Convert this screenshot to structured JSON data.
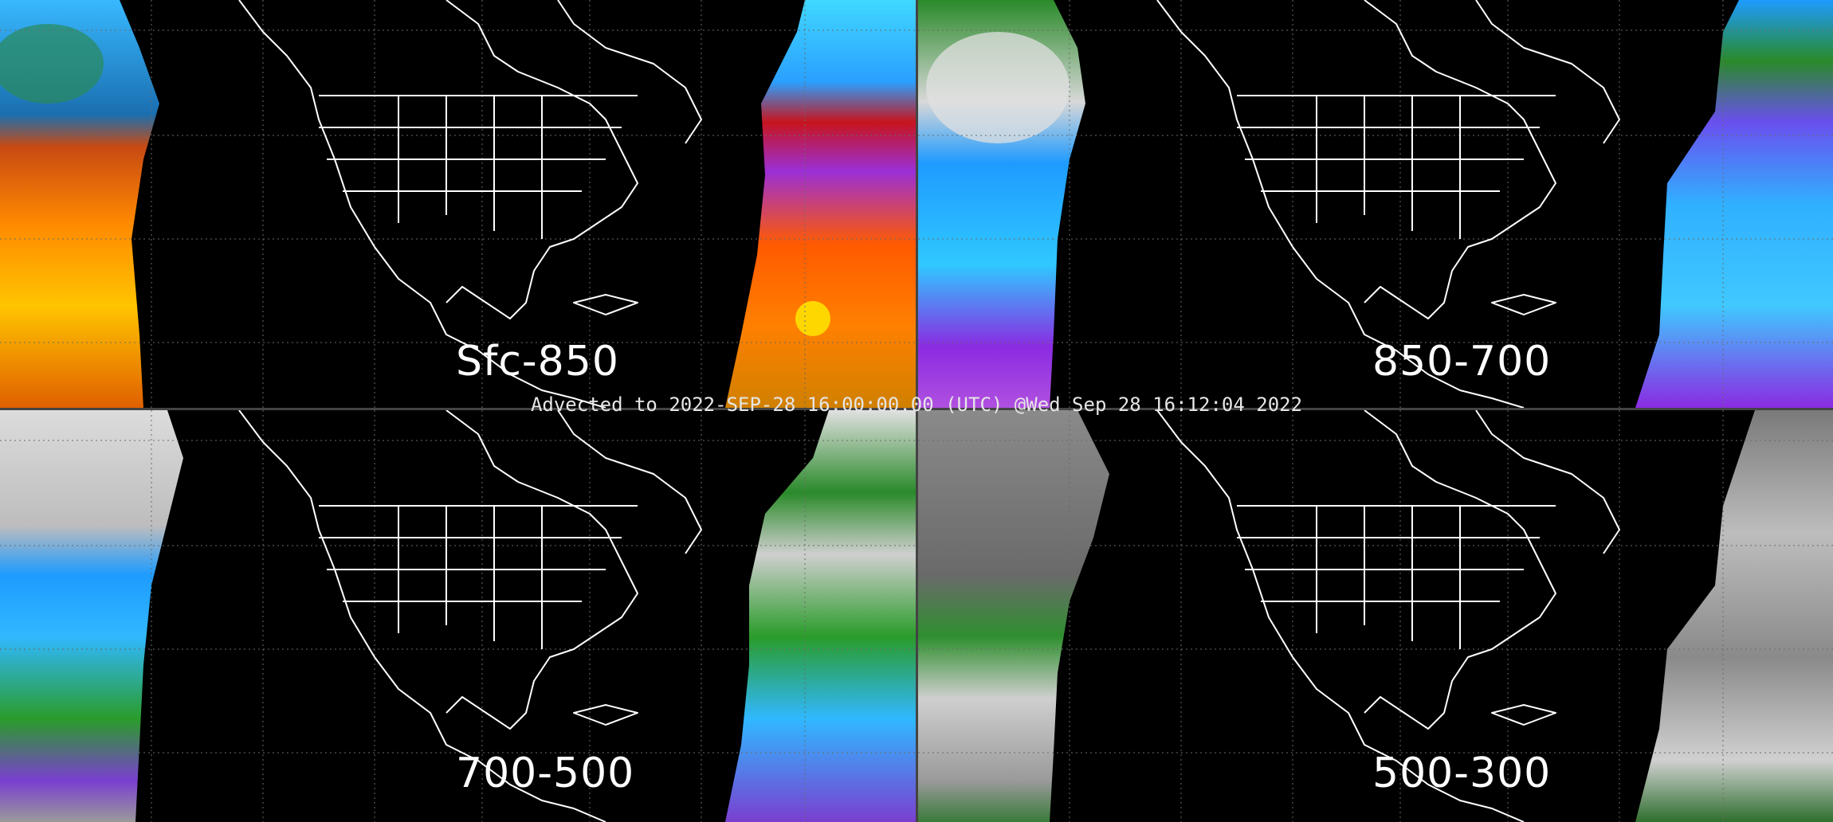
{
  "panels": [
    {
      "label": "Sfc-850",
      "palette": "warm-spectrum",
      "colors": {
        "a": "#1f7fd4",
        "b": "#ff6a00",
        "c": "#ffd700",
        "d": "#9b1fd6"
      }
    },
    {
      "label": "850-700",
      "palette": "cool-spectrum",
      "colors": {
        "a": "#cfcfcf",
        "b": "#2aa8ff",
        "c": "#1e8f1e",
        "d": "#8a2be2"
      }
    },
    {
      "label": "700-500",
      "palette": "gray-green-blue",
      "colors": {
        "a": "#d9d9d9",
        "b": "#1e9bff",
        "c": "#2a9c2a",
        "d": "#7a3fd0"
      }
    },
    {
      "label": "500-300",
      "palette": "grayscale",
      "colors": {
        "a": "#7a7a7a",
        "b": "#bfbfbf",
        "c": "#2f8f2f",
        "d": "#5a5a5a"
      }
    }
  ],
  "timestamp": "Advected to 2022-SEP-28 16:00:00.00 (UTC) @Wed Sep 28 16:12:04 2022",
  "colors": {
    "background": "#000000",
    "outline": "#ffffff",
    "grid": "#6a6a6a",
    "divider": "#444444"
  }
}
